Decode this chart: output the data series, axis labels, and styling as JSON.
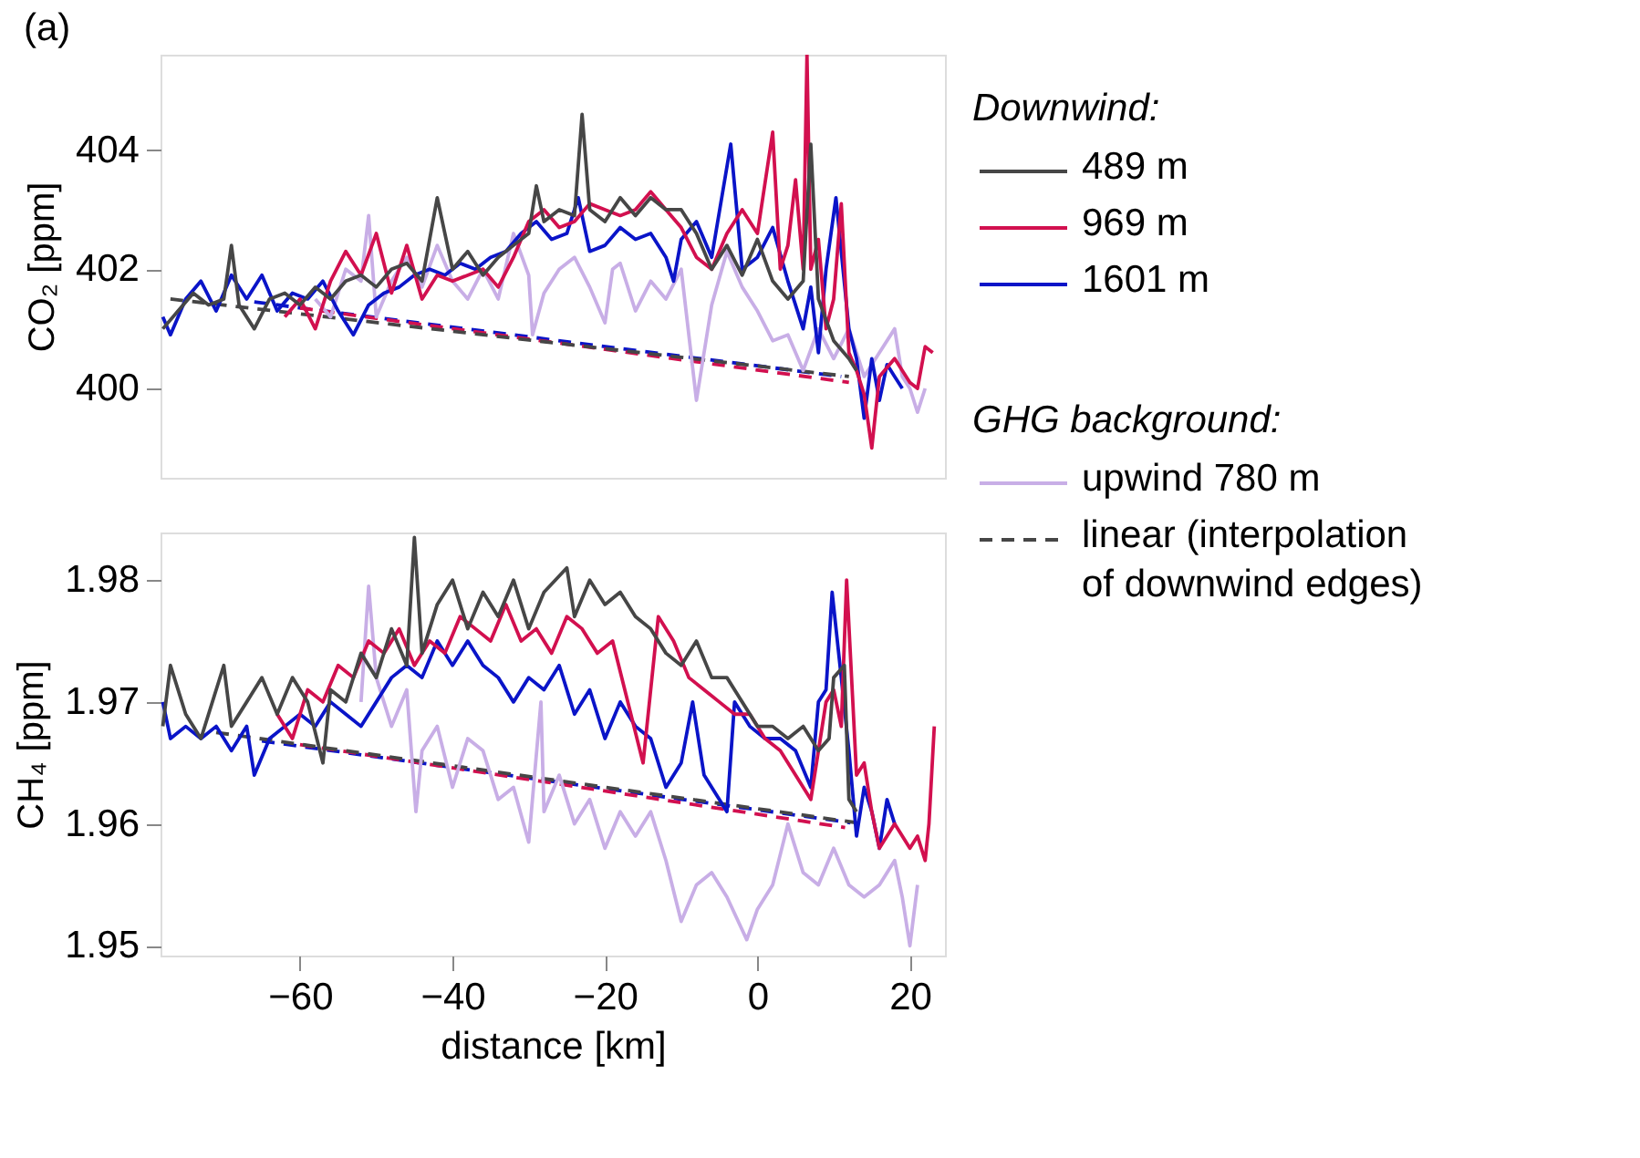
{
  "chart_data": [
    {
      "type": "line",
      "title": "(a)",
      "ylabel": "CO₂ [ppm]",
      "xlim": [
        -78.3,
        24.6
      ],
      "ylim": [
        398.5,
        405.6
      ],
      "yticks": [
        400,
        402,
        404
      ],
      "tick_labels": "y",
      "legend": "right",
      "legend_title": "Downwind:",
      "annotations": [
        "GHG background:"
      ],
      "series": [
        {
          "name": "489 m",
          "color": "#464646",
          "x": [
            -78,
            -76,
            -74,
            -72,
            -70,
            -69,
            -68,
            -66,
            -64,
            -62,
            -60,
            -58,
            -56,
            -54,
            -52,
            -50,
            -48,
            -46,
            -44,
            -42,
            -40,
            -38,
            -36,
            -34,
            -32,
            -30,
            -29,
            -28,
            -26,
            -24,
            -23,
            -22,
            -20,
            -18,
            -16,
            -14,
            -12,
            -10,
            -8,
            -6,
            -4,
            -2,
            0,
            2,
            4,
            6,
            7,
            8,
            10,
            12,
            13
          ],
          "values": [
            401.0,
            401.3,
            401.6,
            401.4,
            401.5,
            402.4,
            401.4,
            401.0,
            401.5,
            401.6,
            401.4,
            401.7,
            401.5,
            401.8,
            401.9,
            401.7,
            402.0,
            402.1,
            401.8,
            403.2,
            402.0,
            402.3,
            401.9,
            402.2,
            402.4,
            402.6,
            403.4,
            402.8,
            403.0,
            402.9,
            404.6,
            403.0,
            402.8,
            403.2,
            402.9,
            403.2,
            403.0,
            403.0,
            402.6,
            402.0,
            402.4,
            401.9,
            402.5,
            401.8,
            401.5,
            401.8,
            404.1,
            401.5,
            400.8,
            400.5,
            400.3
          ]
        },
        {
          "name": "969 m",
          "color": "#d2104f",
          "x": [
            -62,
            -60,
            -58,
            -56,
            -54,
            -52,
            -50,
            -48,
            -46,
            -44,
            -42,
            -40,
            -36,
            -34,
            -32,
            -30,
            -28,
            -26,
            -24,
            -22,
            -20,
            -18,
            -16,
            -14,
            -12,
            -10,
            -8,
            -6,
            -4,
            -2,
            0,
            2,
            3,
            4,
            5,
            6,
            6.5,
            7,
            8,
            9,
            10,
            11,
            12,
            13,
            14,
            15,
            16,
            18,
            20,
            21,
            22,
            23
          ],
          "values": [
            401.2,
            401.5,
            401.0,
            401.8,
            402.3,
            401.9,
            402.6,
            401.6,
            402.4,
            401.5,
            401.9,
            401.8,
            402.0,
            401.7,
            402.2,
            402.8,
            403.0,
            402.7,
            402.8,
            403.1,
            403.0,
            402.9,
            403.0,
            403.3,
            403.0,
            402.7,
            402.2,
            402.0,
            402.6,
            403.0,
            402.6,
            404.3,
            402.0,
            402.4,
            403.5,
            402.0,
            405.6,
            402.0,
            402.5,
            401.0,
            401.5,
            403.1,
            400.6,
            400.3,
            399.9,
            399.0,
            400.2,
            400.5,
            400.1,
            400.0,
            400.7,
            400.6
          ]
        },
        {
          "name": "1601 m",
          "color": "#0a14c8",
          "x": [
            -78,
            -77,
            -75,
            -73,
            -71,
            -69,
            -67,
            -65,
            -63,
            -61,
            -59,
            -57,
            -55,
            -53,
            -51,
            -49,
            -47,
            -45,
            -43,
            -41,
            -39,
            -37,
            -35,
            -33,
            -31,
            -29,
            -27,
            -25,
            -23.5,
            -22,
            -20,
            -18,
            -16,
            -14,
            -12,
            -11,
            -10,
            -8,
            -6,
            -3.5,
            -2,
            0,
            2,
            4,
            6,
            7,
            8,
            9,
            10.3,
            12,
            13,
            14,
            15,
            16,
            17,
            18,
            19
          ],
          "values": [
            401.2,
            400.9,
            401.5,
            401.8,
            401.3,
            401.9,
            401.5,
            401.9,
            401.3,
            401.6,
            401.5,
            401.8,
            401.3,
            400.9,
            401.4,
            401.6,
            401.7,
            401.9,
            402.0,
            401.9,
            402.1,
            402.0,
            402.2,
            402.3,
            402.6,
            402.8,
            402.5,
            402.6,
            403.2,
            402.3,
            402.4,
            402.7,
            402.5,
            402.6,
            402.2,
            401.8,
            402.5,
            402.8,
            402.2,
            404.1,
            402.0,
            402.2,
            402.7,
            401.8,
            401.0,
            401.7,
            400.6,
            402.0,
            403.2,
            401.0,
            400.5,
            399.5,
            400.5,
            399.8,
            400.4,
            400.2,
            400.0
          ]
        },
        {
          "name": "upwind 780 m",
          "color": "#c8aee6",
          "x": [
            -58,
            -56,
            -54,
            -52,
            -51,
            -50,
            -48,
            -46,
            -44,
            -42,
            -40,
            -38,
            -36,
            -34,
            -32,
            -30,
            -29.5,
            -28,
            -26,
            -24,
            -22,
            -20,
            -19,
            -18,
            -16,
            -14,
            -12,
            -10,
            -8,
            -6,
            -4,
            -2,
            0,
            2,
            4,
            6,
            8,
            10,
            12,
            14,
            16,
            18,
            19,
            20,
            21,
            22
          ],
          "values": [
            401.5,
            401.2,
            402.0,
            401.8,
            402.9,
            401.2,
            401.8,
            402.2,
            401.7,
            402.4,
            401.8,
            401.5,
            402.0,
            401.5,
            402.6,
            401.9,
            400.9,
            401.6,
            402.0,
            402.2,
            401.7,
            401.1,
            402.0,
            402.1,
            401.3,
            401.8,
            401.5,
            402.0,
            399.8,
            401.4,
            402.3,
            401.7,
            401.3,
            400.8,
            400.9,
            400.3,
            401.0,
            400.5,
            401.0,
            400.2,
            400.6,
            401.0,
            400.2,
            400.0,
            399.6,
            400.0
          ]
        },
        {
          "name": "linear (interpolation of downwind edges)",
          "color": "#464646",
          "line_style": "dashed",
          "x": [
            -77,
            12
          ],
          "values": [
            401.5,
            400.2
          ]
        },
        {
          "color": "#d2104f",
          "line_style": "dashed",
          "x": [
            -60,
            12
          ],
          "values": [
            401.35,
            400.1
          ]
        },
        {
          "color": "#0a14c8",
          "line_style": "dashed",
          "x": [
            -66,
            11
          ],
          "values": [
            401.45,
            400.2
          ]
        }
      ]
    },
    {
      "type": "line",
      "ylabel": "CH₄ [ppm]",
      "xlabel": "distance [km]",
      "xlim": [
        -78.3,
        24.6
      ],
      "ylim": [
        1.9492,
        1.9839
      ],
      "yticks": [
        1.95,
        1.96,
        1.97,
        1.98
      ],
      "xticks": [
        -60,
        -40,
        -20,
        0,
        20
      ],
      "series": [
        {
          "color": "#464646",
          "x": [
            -78,
            -77,
            -75,
            -73,
            -71,
            -70,
            -69,
            -67,
            -65,
            -63,
            -61,
            -59,
            -57,
            -56,
            -54,
            -52,
            -50,
            -48,
            -46,
            -45,
            -44,
            -42,
            -40,
            -38,
            -36,
            -34,
            -32,
            -30,
            -28,
            -25,
            -24,
            -22,
            -20,
            -18,
            -16,
            -14,
            -12,
            -10,
            -8,
            -6,
            -4,
            -2,
            0,
            2,
            4,
            6,
            8,
            9.4,
            10,
            11.4,
            12,
            13
          ],
          "values": [
            1.968,
            1.973,
            1.969,
            1.967,
            1.971,
            1.973,
            1.968,
            1.97,
            1.972,
            1.969,
            1.972,
            1.97,
            1.965,
            1.971,
            1.97,
            1.974,
            1.972,
            1.976,
            1.973,
            1.9835,
            1.974,
            1.978,
            1.98,
            1.976,
            1.979,
            1.977,
            1.98,
            1.976,
            1.979,
            1.981,
            1.977,
            1.98,
            1.978,
            1.979,
            1.977,
            1.976,
            1.974,
            1.973,
            1.975,
            1.972,
            1.972,
            1.97,
            1.968,
            1.968,
            1.967,
            1.968,
            1.966,
            1.967,
            1.972,
            1.973,
            1.962,
            1.961
          ]
        },
        {
          "color": "#d2104f",
          "x": [
            -63,
            -61,
            -59,
            -57,
            -55,
            -53,
            -51,
            -49,
            -47,
            -45,
            -43,
            -41,
            -39,
            -37,
            -35,
            -33,
            -31,
            -29,
            -27,
            -25,
            -23,
            -21,
            -19,
            -17,
            -15,
            -13,
            -11,
            -9,
            -7,
            -5,
            -3,
            -1,
            1,
            3,
            5,
            7,
            9,
            10,
            11,
            11.7,
            13,
            14,
            15,
            16,
            18,
            20,
            21,
            22,
            22.5,
            23.2
          ],
          "values": [
            1.969,
            1.967,
            1.971,
            1.97,
            1.973,
            1.972,
            1.975,
            1.974,
            1.976,
            1.973,
            1.975,
            1.974,
            1.977,
            1.976,
            1.975,
            1.978,
            1.975,
            1.976,
            1.974,
            1.977,
            1.976,
            1.974,
            1.975,
            1.97,
            1.965,
            1.977,
            1.975,
            1.972,
            1.971,
            1.97,
            1.969,
            1.969,
            1.967,
            1.966,
            1.964,
            1.962,
            1.97,
            1.971,
            1.968,
            1.98,
            1.964,
            1.965,
            1.961,
            1.958,
            1.96,
            1.958,
            1.959,
            1.957,
            1.96,
            1.968
          ]
        },
        {
          "color": "#0a14c8",
          "x": [
            -78,
            -77,
            -75,
            -73,
            -71,
            -69,
            -67,
            -66,
            -64,
            -62,
            -60,
            -58,
            -56,
            -54,
            -52,
            -50,
            -48,
            -46,
            -44,
            -42,
            -40,
            -38,
            -36,
            -34,
            -32,
            -30,
            -28,
            -26,
            -24,
            -22,
            -20,
            -18,
            -16,
            -14,
            -12,
            -10,
            -8.5,
            -7,
            -5,
            -4,
            -3,
            -1,
            1,
            3,
            5,
            7,
            8,
            9,
            9.8,
            11,
            12,
            13,
            14,
            15,
            16,
            17,
            18
          ],
          "values": [
            1.97,
            1.967,
            1.968,
            1.967,
            1.968,
            1.966,
            1.968,
            1.964,
            1.967,
            1.968,
            1.969,
            1.968,
            1.97,
            1.969,
            1.968,
            1.97,
            1.972,
            1.973,
            1.972,
            1.975,
            1.973,
            1.975,
            1.973,
            1.972,
            1.97,
            1.972,
            1.971,
            1.973,
            1.969,
            1.971,
            1.967,
            1.97,
            1.968,
            1.967,
            1.963,
            1.965,
            1.97,
            1.964,
            1.962,
            1.961,
            1.97,
            1.968,
            1.967,
            1.967,
            1.966,
            1.963,
            1.97,
            1.971,
            1.979,
            1.972,
            1.966,
            1.959,
            1.963,
            1.961,
            1.958,
            1.962,
            1.96
          ]
        },
        {
          "color": "#c8aee6",
          "x": [
            -52,
            -51,
            -50,
            -48,
            -46,
            -44.8,
            -44,
            -42,
            -40,
            -38,
            -36,
            -34,
            -32,
            -30,
            -28.4,
            -28,
            -26,
            -24,
            -22,
            -20,
            -18,
            -16,
            -14,
            -12,
            -10,
            -8,
            -6,
            -4,
            -1.4,
            0,
            2,
            4,
            6,
            8,
            10,
            12,
            14,
            16,
            18,
            19,
            20,
            21
          ],
          "values": [
            1.97,
            1.9795,
            1.972,
            1.968,
            1.971,
            1.961,
            1.966,
            1.968,
            1.963,
            1.967,
            1.966,
            1.962,
            1.963,
            1.9585,
            1.97,
            1.961,
            1.964,
            1.96,
            1.962,
            1.958,
            1.961,
            1.959,
            1.961,
            1.957,
            1.952,
            1.955,
            1.956,
            1.954,
            1.9505,
            1.953,
            1.955,
            1.96,
            1.956,
            1.955,
            1.958,
            1.955,
            1.954,
            1.955,
            1.957,
            1.954,
            1.95,
            1.955
          ]
        },
        {
          "color": "#464646",
          "line_style": "dashed",
          "x": [
            -71,
            13
          ],
          "values": [
            1.9675,
            1.9601
          ]
        },
        {
          "color": "#d2104f",
          "line_style": "dashed",
          "x": [
            -60,
            11.5
          ],
          "values": [
            1.9665,
            1.9597
          ]
        },
        {
          "color": "#0a14c8",
          "line_style": "dashed",
          "x": [
            -65,
            12.2
          ],
          "values": [
            1.9668,
            1.9601
          ]
        }
      ]
    }
  ]
}
